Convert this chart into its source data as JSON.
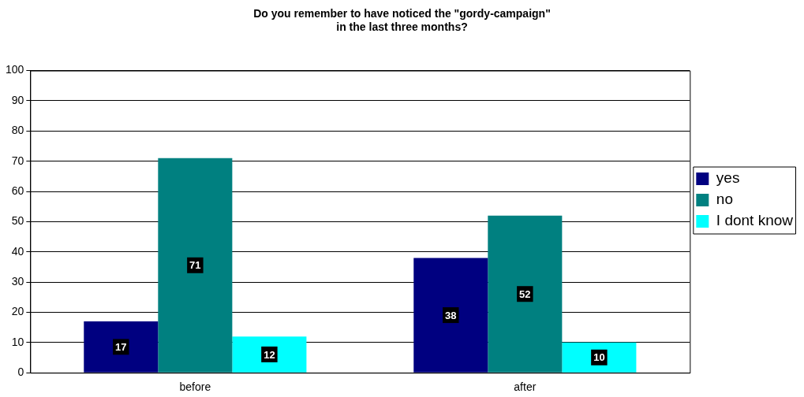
{
  "chart_data": {
    "type": "bar",
    "title": "Do you remember to have noticed the \"gordy-campaign\"\nin the last three months?",
    "categories": [
      "before",
      "after"
    ],
    "series": [
      {
        "name": "yes",
        "color": "#000080",
        "values": [
          17,
          38
        ]
      },
      {
        "name": "no",
        "color": "#008080",
        "values": [
          71,
          52
        ]
      },
      {
        "name": "I dont know",
        "color": "#00ffff",
        "values": [
          12,
          10
        ]
      }
    ],
    "ylim": [
      0,
      100
    ],
    "yticks": [
      0,
      10,
      20,
      30,
      40,
      50,
      60,
      70,
      80,
      90,
      100
    ],
    "grid": "y",
    "legend": "right",
    "data_labels": true
  }
}
